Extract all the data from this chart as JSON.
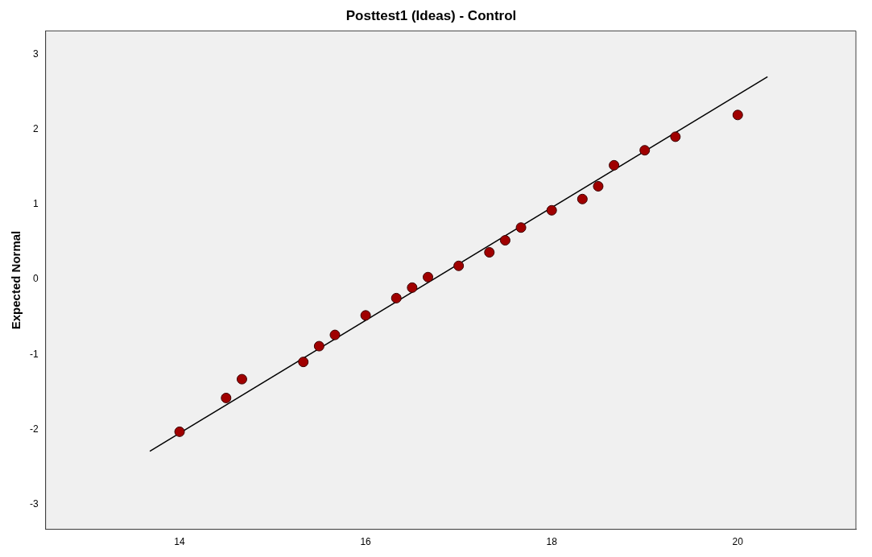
{
  "chart_data": {
    "type": "scatter",
    "title": "Posttest1 (Ideas) - Control",
    "ylabel": "Expected Normal",
    "x": [
      14,
      14.5,
      14.67,
      15.33,
      15.5,
      15.67,
      16,
      16.33,
      16.5,
      16.67,
      17,
      17.33,
      17.5,
      17.67,
      18,
      18.33,
      18.5,
      18.67,
      19,
      19.33,
      20
    ],
    "series": [
      {
        "color": "#a00000",
        "values": [
          -2.03,
          -1.58,
          -1.33,
          -1.1,
          -0.89,
          -0.74,
          -0.48,
          -0.25,
          -0.11,
          0.03,
          0.18,
          0.36,
          0.52,
          0.69,
          0.92,
          1.07,
          1.24,
          1.52,
          1.72,
          1.9,
          2.19
        ]
      },
      {
        "type": "line",
        "marker": "none",
        "color": "#000000",
        "x": [
          13.68,
          20.32
        ],
        "values": [
          -2.29,
          2.7
        ]
      }
    ],
    "xlim": [
      12.56,
      21.27
    ],
    "ylim": [
      -3.33,
      3.31
    ],
    "xticks": [
      14,
      16,
      18,
      20
    ],
    "yticks": [
      -3,
      -2,
      -1,
      0,
      1,
      2,
      3
    ],
    "grid": false,
    "legend": false,
    "marker": "circle",
    "line_style": "solid"
  }
}
